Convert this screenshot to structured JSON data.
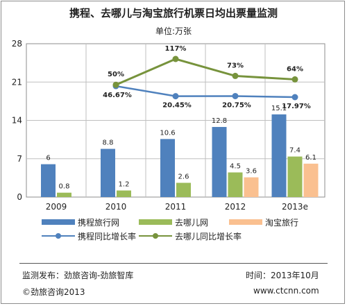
{
  "chart_data": {
    "type": "bar",
    "title": "携程、去哪儿与淘宝旅行机票日均出票量监测",
    "subtitle": "单位:万张",
    "categories": [
      "2009",
      "2010",
      "2011",
      "2012",
      "2013e"
    ],
    "ylim": [
      0,
      28
    ],
    "yticks": [
      "0",
      "7",
      "14",
      "21",
      "28"
    ],
    "grid": true,
    "series": [
      {
        "name": "携程旅行网",
        "type": "bar",
        "color": "#4f81bd",
        "values": [
          6,
          8.8,
          10.6,
          12.8,
          15.1
        ],
        "labels": [
          "6",
          "8.8",
          "10.6",
          "12.8",
          "15.1"
        ]
      },
      {
        "name": "去哪儿网",
        "type": "bar",
        "color": "#9bbb59",
        "values": [
          0.8,
          1.2,
          2.6,
          4.5,
          7.4
        ],
        "labels": [
          "0.8",
          "1.2",
          "2.6",
          "4.5",
          "7.4"
        ]
      },
      {
        "name": "淘宝旅行",
        "type": "bar",
        "color": "#fac090",
        "values": [
          null,
          null,
          null,
          3.6,
          6.1
        ],
        "labels": [
          "",
          "",
          "",
          "3.6",
          "6.1"
        ]
      },
      {
        "name": "携程同比增长率",
        "type": "line",
        "color": "#4f81bd",
        "values": [
          null,
          46.67,
          20.45,
          20.75,
          17.97
        ],
        "labels": [
          "",
          "46.67%",
          "20.45%",
          "20.75%",
          "17.97%"
        ]
      },
      {
        "name": "去哪儿同比增长率",
        "type": "line",
        "color": "#77933c",
        "values": [
          null,
          50,
          117,
          73,
          64
        ],
        "labels": [
          "",
          "50%",
          "117%",
          "73%",
          "64%"
        ]
      }
    ],
    "legend_position": "bottom"
  },
  "footer": {
    "source": "监测发布：劲旅咨询-劲旅智库",
    "time": "时间：2013年10月",
    "copyright": "©劲旅咨询2013",
    "website": "www.ctcnn.com"
  }
}
